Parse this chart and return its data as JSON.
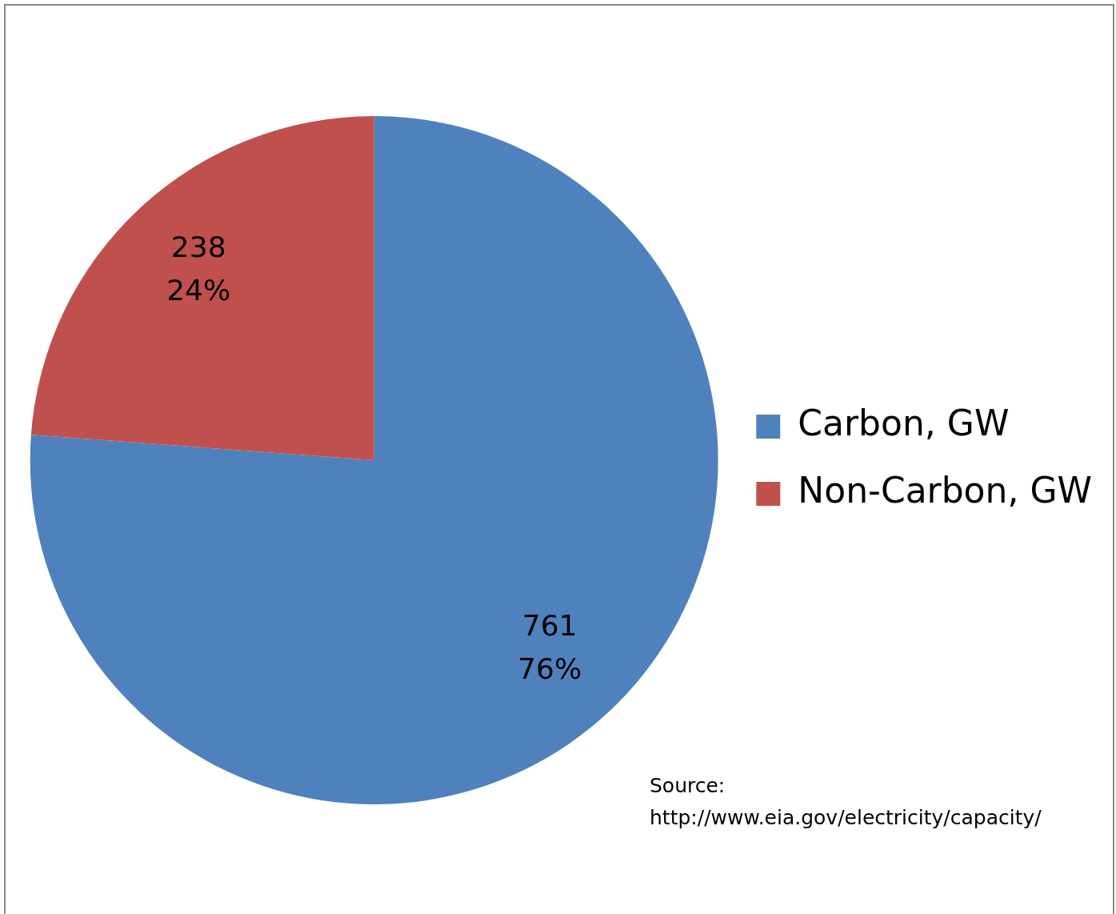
{
  "chart_data": {
    "type": "pie",
    "categories": [
      "Carbon, GW",
      "Non-Carbon, GW"
    ],
    "values": [
      761,
      238
    ],
    "colors": [
      "#4f81bd",
      "#c0504d"
    ],
    "value_labels": [
      "761\n76%",
      "238\n24%"
    ],
    "legend": "right",
    "annotations": [
      "Source:\nhttp://www.eia.gov/electricity/capacity/"
    ]
  }
}
